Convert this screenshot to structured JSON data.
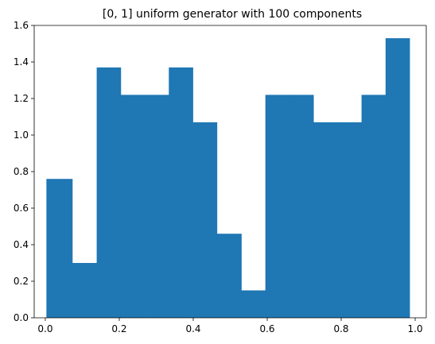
{
  "chart_data": {
    "type": "bar",
    "title": "[0, 1] uniform generator with 100 components",
    "xlabel": "",
    "ylabel": "",
    "xlim": [
      -0.03,
      1.03
    ],
    "ylim": [
      0.0,
      1.6
    ],
    "grid": false,
    "bar_color": "#1f77b4",
    "bins": [
      {
        "x0": 0.003,
        "x1": 0.073,
        "value": 0.76
      },
      {
        "x0": 0.073,
        "x1": 0.139,
        "value": 0.3
      },
      {
        "x0": 0.139,
        "x1": 0.204,
        "value": 1.37
      },
      {
        "x0": 0.204,
        "x1": 0.269,
        "value": 1.22
      },
      {
        "x0": 0.269,
        "x1": 0.334,
        "value": 1.22
      },
      {
        "x0": 0.334,
        "x1": 0.399,
        "value": 1.37
      },
      {
        "x0": 0.399,
        "x1": 0.464,
        "value": 1.07
      },
      {
        "x0": 0.464,
        "x1": 0.53,
        "value": 0.46
      },
      {
        "x0": 0.53,
        "x1": 0.595,
        "value": 0.15
      },
      {
        "x0": 0.595,
        "x1": 0.66,
        "value": 1.22
      },
      {
        "x0": 0.66,
        "x1": 0.725,
        "value": 1.22
      },
      {
        "x0": 0.725,
        "x1": 0.79,
        "value": 1.07
      },
      {
        "x0": 0.79,
        "x1": 0.855,
        "value": 1.07
      },
      {
        "x0": 0.855,
        "x1": 0.92,
        "value": 1.22
      },
      {
        "x0": 0.92,
        "x1": 0.985,
        "value": 1.53
      }
    ],
    "x_ticks": [
      {
        "value": 0.0,
        "label": "0.0"
      },
      {
        "value": 0.2,
        "label": "0.2"
      },
      {
        "value": 0.4,
        "label": "0.4"
      },
      {
        "value": 0.6,
        "label": "0.6"
      },
      {
        "value": 0.8,
        "label": "0.8"
      },
      {
        "value": 1.0,
        "label": "1.0"
      }
    ],
    "y_ticks": [
      {
        "value": 0.0,
        "label": "0.0"
      },
      {
        "value": 0.2,
        "label": "0.2"
      },
      {
        "value": 0.4,
        "label": "0.4"
      },
      {
        "value": 0.6,
        "label": "0.6"
      },
      {
        "value": 0.8,
        "label": "0.8"
      },
      {
        "value": 1.0,
        "label": "1.0"
      },
      {
        "value": 1.2,
        "label": "1.2"
      },
      {
        "value": 1.4,
        "label": "1.4"
      },
      {
        "value": 1.6,
        "label": "1.6"
      }
    ]
  }
}
